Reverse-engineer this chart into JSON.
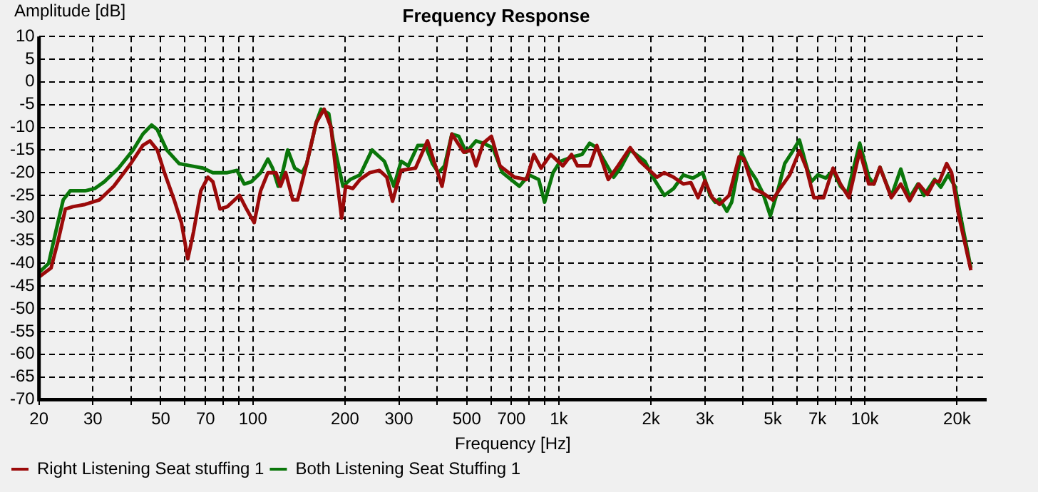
{
  "chart_data": {
    "type": "line",
    "title": "Frequency Response",
    "xlabel": "Frequency [Hz]",
    "ylabel": "Amplitude [dB]",
    "log": "x",
    "grid": true,
    "legend": "bottom left",
    "marker": "none",
    "line_style": "solid",
    "xlim": [
      20,
      25000
    ],
    "xticks": [
      20,
      30,
      {
        "value": 40,
        "label": null
      },
      50,
      {
        "value": 60,
        "label": null
      },
      70,
      {
        "value": 80,
        "label": null
      },
      {
        "value": 90,
        "label": null
      },
      100,
      200,
      300,
      {
        "value": 400,
        "label": null
      },
      500,
      {
        "value": 600,
        "label": null
      },
      700,
      {
        "value": 800,
        "label": null
      },
      {
        "value": 900,
        "label": null
      },
      {
        "value": 1000,
        "label": "1k"
      },
      {
        "value": 2000,
        "label": "2k"
      },
      {
        "value": 3000,
        "label": "3k"
      },
      {
        "value": 4000,
        "label": null
      },
      {
        "value": 5000,
        "label": "5k"
      },
      {
        "value": 6000,
        "label": null
      },
      {
        "value": 7000,
        "label": "7k"
      },
      {
        "value": 8000,
        "label": null
      },
      {
        "value": 9000,
        "label": null
      },
      {
        "value": 10000,
        "label": "10k"
      },
      {
        "value": 20000,
        "label": "20k"
      }
    ],
    "ylim": [
      -70,
      10
    ],
    "yticks": [
      -70,
      -65,
      -60,
      -55,
      -50,
      -45,
      -40,
      -35,
      -30,
      -25,
      -20,
      -15,
      -10,
      -5,
      0,
      5,
      10
    ],
    "series": [
      {
        "name": "Right Listening Seat stuffing 1",
        "color": "#9b0a0a",
        "x": [
          20,
          21.9,
          23.1,
          24.4,
          25.8,
          28.3,
          31.5,
          35.1,
          39.9,
          43.7,
          46.1,
          48.7,
          51.4,
          55.3,
          58.4,
          61.3,
          64,
          67.6,
          71.3,
          74,
          78.1,
          82.5,
          90.4,
          95.3,
          101,
          106,
          112,
          119,
          123,
          128,
          135,
          140,
          150,
          161,
          171,
          180,
          187,
          195,
          201,
          212,
          224,
          241,
          259,
          274,
          286,
          305,
          340,
          372,
          393,
          415,
          447,
          489,
          516,
          536,
          566,
          602,
          642,
          716,
          784,
          828,
          875,
          940,
          1030,
          1100,
          1150,
          1260,
          1330,
          1450,
          1560,
          1710,
          1840,
          1980,
          2090,
          2210,
          2370,
          2550,
          2700,
          2850,
          3000,
          3170,
          3350,
          3600,
          3880,
          4020,
          4320,
          4640,
          5000,
          5280,
          5680,
          6110,
          6440,
          6810,
          7330,
          7870,
          8320,
          8870,
          9620,
          10300,
          10700,
          11200,
          12200,
          13100,
          14000,
          15000,
          16000,
          16900,
          17500,
          18500,
          19200,
          20200,
          22200
        ],
        "values": [
          -43,
          -41,
          -35,
          -28,
          -27.5,
          -27,
          -26,
          -23,
          -18,
          -14,
          -13,
          -15,
          -20,
          -26,
          -31,
          -39,
          -33,
          -24,
          -21,
          -22,
          -28,
          -27.5,
          -25,
          -28,
          -31,
          -24,
          -20,
          -20,
          -23,
          -20,
          -26,
          -26,
          -18,
          -9,
          -6,
          -10,
          -20,
          -30,
          -23,
          -23.5,
          -21.5,
          -20,
          -19.5,
          -21,
          -26.3,
          -19.5,
          -19,
          -13,
          -18,
          -23,
          -11.5,
          -15.5,
          -15,
          -18.5,
          -13.5,
          -12,
          -18.5,
          -21,
          -21.5,
          -16,
          -19,
          -16,
          -18.5,
          -16,
          -18.5,
          -18.5,
          -14,
          -21.5,
          -18.5,
          -14.5,
          -17.5,
          -19.5,
          -21,
          -20,
          -21,
          -22.5,
          -22.2,
          -25.5,
          -21.8,
          -25.5,
          -27,
          -25,
          -16.5,
          -17,
          -23.5,
          -24.5,
          -26,
          -23.5,
          -20.5,
          -15.2,
          -19,
          -25.5,
          -25.5,
          -19,
          -22.5,
          -25.5,
          -15.2,
          -22.5,
          -22.5,
          -18.8,
          -25.5,
          -22.5,
          -26.2,
          -22.5,
          -24.8,
          -21.8,
          -22,
          -18,
          -20,
          -29,
          -41.5
        ]
      },
      {
        "name": "Both Listening Seat Stuffing 1",
        "color": "#0a760a",
        "x": [
          20,
          21.5,
          22.7,
          24,
          25.3,
          28.3,
          30.4,
          32.7,
          36.4,
          40.6,
          43.7,
          46.7,
          48.7,
          52.3,
          57.4,
          62.8,
          68.7,
          74,
          82.5,
          88.7,
          93.7,
          98.9,
          106,
          112,
          116,
          121,
          125,
          130,
          137,
          145,
          150,
          161,
          167,
          177,
          183,
          197,
          208,
          224,
          245,
          269,
          289,
          305,
          322,
          346,
          366,
          386,
          404,
          423,
          447,
          471,
          498,
          536,
          566,
          608,
          654,
          743,
          798,
          859,
          898,
          957,
          1010,
          1110,
          1190,
          1260,
          1330,
          1510,
          1590,
          1710,
          1910,
          2050,
          2210,
          2370,
          2550,
          2740,
          2950,
          3120,
          3240,
          3350,
          3540,
          3670,
          3950,
          4170,
          4410,
          4640,
          4910,
          5190,
          5470,
          5780,
          6110,
          6440,
          6680,
          7020,
          7450,
          7870,
          8320,
          8770,
          9620,
          10300,
          10700,
          11200,
          12200,
          13100,
          14000,
          14900,
          15600,
          16900,
          17700,
          18700,
          19700,
          20600,
          22200
        ],
        "values": [
          -42,
          -40,
          -33,
          -26,
          -24,
          -24,
          -23.5,
          -22,
          -19,
          -15,
          -11.5,
          -9.5,
          -10.5,
          -15,
          -18,
          -18.5,
          -19,
          -20,
          -20,
          -19.5,
          -22.5,
          -22,
          -20,
          -17,
          -19,
          -23,
          -20,
          -15,
          -19,
          -20,
          -18,
          -9,
          -6,
          -7,
          -13,
          -23,
          -21.5,
          -20.5,
          -15,
          -17.5,
          -23,
          -17.5,
          -18.5,
          -14,
          -14,
          -18,
          -20,
          -18.5,
          -11.5,
          -12,
          -15.5,
          -13,
          -13.5,
          -14.5,
          -20,
          -23,
          -20.5,
          -21.5,
          -26.5,
          -20,
          -17.5,
          -16.5,
          -16,
          -13.5,
          -14.5,
          -21,
          -19,
          -15,
          -17.5,
          -21.5,
          -25,
          -23.5,
          -20.5,
          -21.2,
          -20,
          -25,
          -26.5,
          -25.8,
          -28.5,
          -26.5,
          -15.5,
          -19,
          -21.5,
          -24.5,
          -29.5,
          -24,
          -18,
          -15.5,
          -12.8,
          -18.5,
          -22,
          -20.5,
          -21.2,
          -19.5,
          -23,
          -24.5,
          -13.5,
          -21,
          -22.5,
          -18.8,
          -25.2,
          -19.2,
          -25.5,
          -22.5,
          -25,
          -21.5,
          -23.2,
          -20.5,
          -23,
          -30,
          -41
        ]
      }
    ]
  }
}
